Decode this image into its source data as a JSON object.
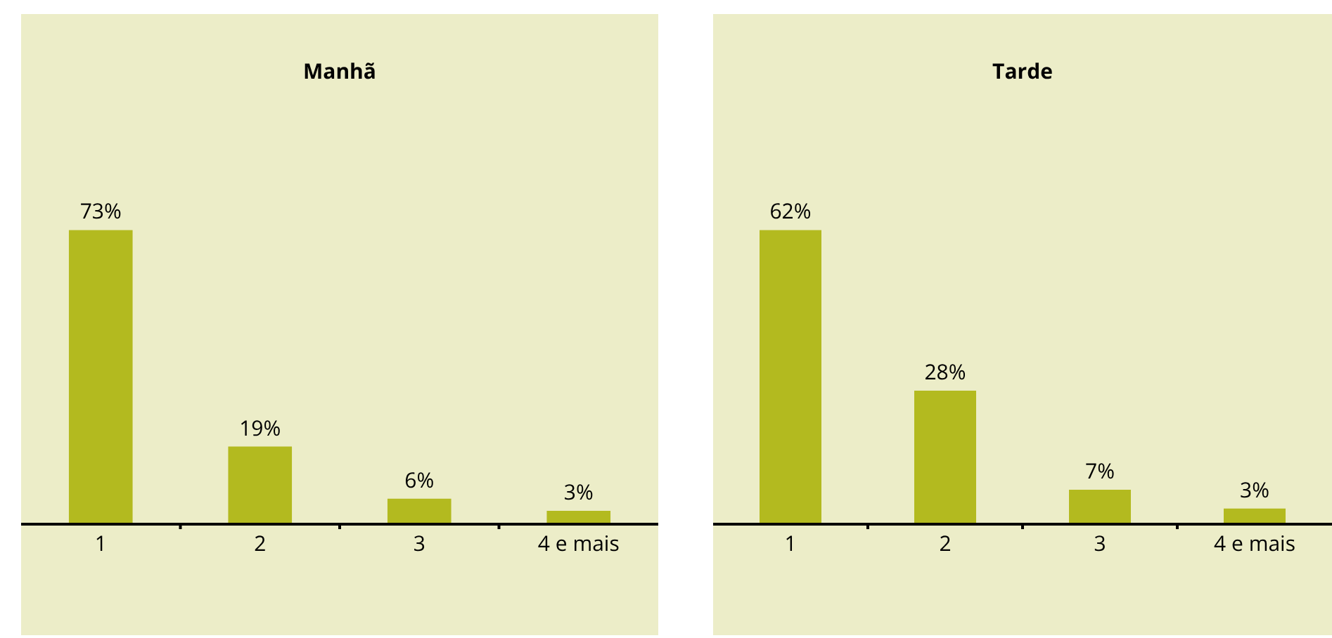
{
  "chart_data": [
    {
      "type": "bar",
      "title": "Manhã",
      "categories": [
        "1",
        "2",
        "3",
        "4 e mais"
      ],
      "values": [
        73,
        19,
        6,
        3
      ],
      "value_labels": [
        "73%",
        "19%",
        "6%",
        "3%"
      ],
      "color": "#b3ba1f"
    },
    {
      "type": "bar",
      "title": "Tarde",
      "categories": [
        "1",
        "2",
        "3",
        "4 e mais"
      ],
      "values": [
        62,
        28,
        7,
        3
      ],
      "value_labels": [
        "62%",
        "28%",
        "7%",
        "3%"
      ],
      "color": "#b3ba1f"
    }
  ]
}
